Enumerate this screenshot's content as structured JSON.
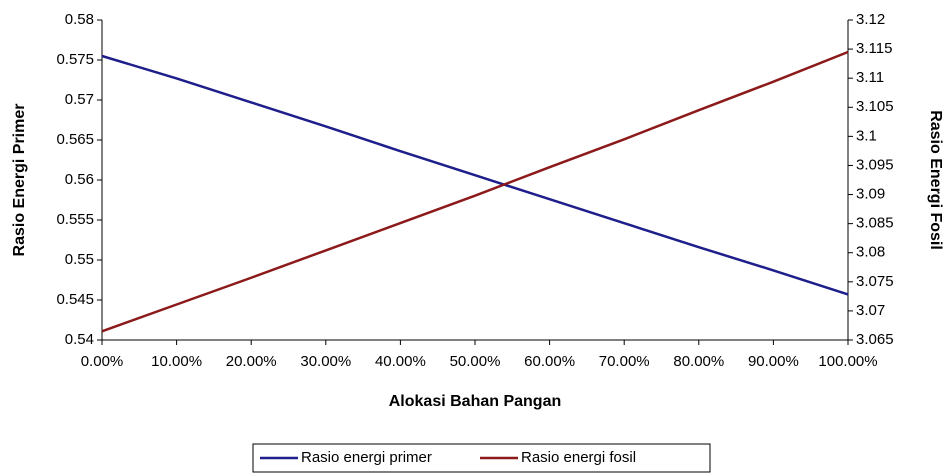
{
  "chart_data": {
    "type": "line",
    "x_label": "Alokasi Bahan Pangan",
    "y_label": "Rasio Energi Primer",
    "y2_label": "Rasio Energi Fosil",
    "x": [
      0,
      10,
      20,
      30,
      40,
      50,
      60,
      70,
      80,
      90,
      100
    ],
    "xlim": [
      0,
      100
    ],
    "xticks": [
      {
        "value": 0,
        "label": "0.00%"
      },
      {
        "value": 10,
        "label": "10.00%"
      },
      {
        "value": 20,
        "label": "20.00%"
      },
      {
        "value": 30,
        "label": "30.00%"
      },
      {
        "value": 40,
        "label": "40.00%"
      },
      {
        "value": 50,
        "label": "50.00%"
      },
      {
        "value": 60,
        "label": "60.00%"
      },
      {
        "value": 70,
        "label": "70.00%"
      },
      {
        "value": 80,
        "label": "80.00%"
      },
      {
        "value": 90,
        "label": "90.00%"
      },
      {
        "value": 100,
        "label": "100.00%"
      }
    ],
    "ylim": [
      0.54,
      0.58
    ],
    "yticks": [
      0.54,
      0.545,
      0.55,
      0.555,
      0.56,
      0.565,
      0.57,
      0.575,
      0.58
    ],
    "y2lim": [
      3.065,
      3.12
    ],
    "y2ticks": [
      3.065,
      3.07,
      3.075,
      3.08,
      3.085,
      3.09,
      3.095,
      3.1,
      3.105,
      3.11,
      3.115,
      3.12
    ],
    "series": [
      {
        "name": "Rasio energi primer",
        "color": "#1f1f8c",
        "values": [
          0.5755,
          0.5727,
          0.5697,
          0.5667,
          0.5636,
          0.5606,
          0.5576,
          0.5546,
          0.5516,
          0.5487,
          0.5457
        ]
      },
      {
        "name": "Rasio energi fosil",
        "color": "#8c1a1a",
        "axis": "y2",
        "values": [
          3.0665,
          3.0711,
          3.0757,
          3.0804,
          3.0851,
          3.0898,
          3.0947,
          3.0995,
          3.1045,
          3.1094,
          3.1145
        ]
      }
    ]
  }
}
